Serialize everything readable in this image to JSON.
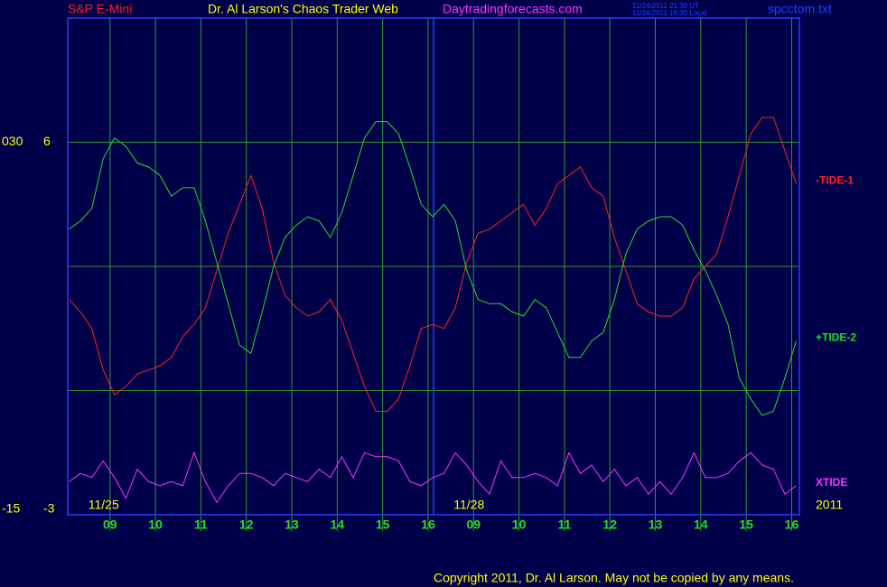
{
  "header": {
    "instrument": "S&P E-Mini",
    "title": "Dr. Al Larson's Chaos Trader Web",
    "site": "Daytradingforecasts.com",
    "time_ut": "11/24/2011 21:30 UT",
    "time_local": "11/24/2011 16:30 Local",
    "file": "spcctom.txt"
  },
  "footer": {
    "copyright": "Copyright 2011, Dr. Al Larson. May not be copied by any means.",
    "year": "2011"
  },
  "chart_data": {
    "type": "line",
    "x": [
      0.1,
      0.35,
      0.6,
      0.85,
      1.1,
      1.35,
      1.6,
      1.85,
      2.1,
      2.35,
      2.6,
      2.85,
      3.1,
      3.35,
      3.6,
      3.85,
      4.1,
      4.35,
      4.6,
      4.85,
      5.1,
      5.35,
      5.6,
      5.85,
      6.1,
      6.35,
      6.6,
      6.85,
      7.1,
      7.35,
      7.6,
      7.85,
      8.1,
      8.35,
      8.6,
      8.85,
      9.1,
      9.35,
      9.6,
      9.85,
      10.1,
      10.35,
      10.6,
      10.85,
      11.1,
      11.35,
      11.6,
      11.85,
      12.1,
      12.35,
      12.6,
      12.85,
      13.1,
      13.35,
      13.6,
      13.85,
      14.1,
      14.35,
      14.6,
      14.85,
      15.1,
      15.35,
      15.6,
      15.85,
      16.1
    ],
    "xlim": [
      0.07,
      16.17
    ],
    "xticks": [
      {
        "value": 1,
        "label": "09"
      },
      {
        "value": 2,
        "label": "10"
      },
      {
        "value": 3,
        "label": "11"
      },
      {
        "value": 4,
        "label": "12"
      },
      {
        "value": 5,
        "label": "13"
      },
      {
        "value": 6,
        "label": "14"
      },
      {
        "value": 7,
        "label": "15"
      },
      {
        "value": 8,
        "label": "16"
      },
      {
        "value": 9,
        "label": "09"
      },
      {
        "value": 10,
        "label": "10"
      },
      {
        "value": 11,
        "label": "11"
      },
      {
        "value": 12,
        "label": "12"
      },
      {
        "value": 13,
        "label": "13"
      },
      {
        "value": 14,
        "label": "14"
      },
      {
        "value": 15,
        "label": "15"
      },
      {
        "value": 16,
        "label": "16"
      }
    ],
    "date_labels": [
      {
        "x": 0.86,
        "label": "11/25"
      },
      {
        "x": 8.9,
        "label": "11/28"
      }
    ],
    "day_break_x": 8.12,
    "ylim": [
      -3,
      9
    ],
    "yticks": [
      -3,
      6
    ],
    "ygrid": [
      0,
      3,
      6
    ],
    "y2lim": [
      -15,
      45
    ],
    "y2ticks": [
      -15,
      {
        "value": 30,
        "label": "030"
      }
    ],
    "series": [
      {
        "name": "-TIDE-1",
        "color": "#ff2020",
        "values": [
          2.2,
          1.9,
          1.5,
          0.5,
          -0.1,
          0.1,
          0.4,
          0.5,
          0.6,
          0.8,
          1.3,
          1.6,
          2.0,
          2.9,
          3.8,
          4.5,
          5.2,
          4.4,
          3.1,
          2.3,
          2.0,
          1.8,
          1.9,
          2.2,
          1.7,
          0.9,
          0.1,
          -0.5,
          -0.5,
          -0.2,
          0.6,
          1.5,
          1.6,
          1.5,
          2.0,
          3.1,
          3.8,
          3.9,
          4.1,
          4.3,
          4.5,
          4.0,
          4.4,
          5.0,
          5.2,
          5.4,
          4.9,
          4.7,
          3.7,
          2.9,
          2.1,
          1.9,
          1.8,
          1.8,
          2.0,
          2.7,
          3.0,
          3.3,
          4.2,
          5.2,
          6.2,
          6.6,
          6.6,
          5.8,
          5.0
        ]
      },
      {
        "name": "+TIDE-2",
        "color": "#20e020",
        "values": [
          3.9,
          4.1,
          4.4,
          5.6,
          6.1,
          5.9,
          5.5,
          5.4,
          5.2,
          4.7,
          4.9,
          4.9,
          4.1,
          3.1,
          2.1,
          1.1,
          0.9,
          1.9,
          3.0,
          3.7,
          4.0,
          4.2,
          4.1,
          3.7,
          4.3,
          5.2,
          6.1,
          6.5,
          6.5,
          6.2,
          5.4,
          4.5,
          4.2,
          4.5,
          4.1,
          2.9,
          2.2,
          2.1,
          2.1,
          1.9,
          1.8,
          2.2,
          2.0,
          1.4,
          0.8,
          0.8,
          1.2,
          1.4,
          2.2,
          3.3,
          3.9,
          4.1,
          4.2,
          4.2,
          4.0,
          3.4,
          2.9,
          2.3,
          1.6,
          0.3,
          -0.2,
          -0.6,
          -0.5,
          0.3,
          1.2
        ]
      },
      {
        "name": "XTIDE",
        "color": "#ff30ff",
        "values": [
          -2.2,
          -2.0,
          -2.1,
          -1.7,
          -2.1,
          -2.6,
          -1.9,
          -2.2,
          -2.3,
          -2.2,
          -2.3,
          -1.5,
          -2.2,
          -2.7,
          -2.3,
          -2.0,
          -2.0,
          -2.1,
          -2.3,
          -2.0,
          -2.1,
          -2.2,
          -1.9,
          -2.1,
          -1.6,
          -2.1,
          -1.5,
          -1.6,
          -1.6,
          -1.7,
          -2.2,
          -2.3,
          -2.1,
          -2.0,
          -1.5,
          -1.8,
          -2.2,
          -2.5,
          -1.7,
          -2.1,
          -2.1,
          -2.0,
          -2.1,
          -2.3,
          -1.5,
          -2.0,
          -1.8,
          -2.2,
          -1.9,
          -2.3,
          -2.1,
          -2.5,
          -2.2,
          -2.5,
          -2.1,
          -1.5,
          -2.1,
          -2.1,
          -2.0,
          -1.7,
          -1.5,
          -1.8,
          -1.9,
          -2.5,
          -2.3
        ]
      }
    ]
  }
}
